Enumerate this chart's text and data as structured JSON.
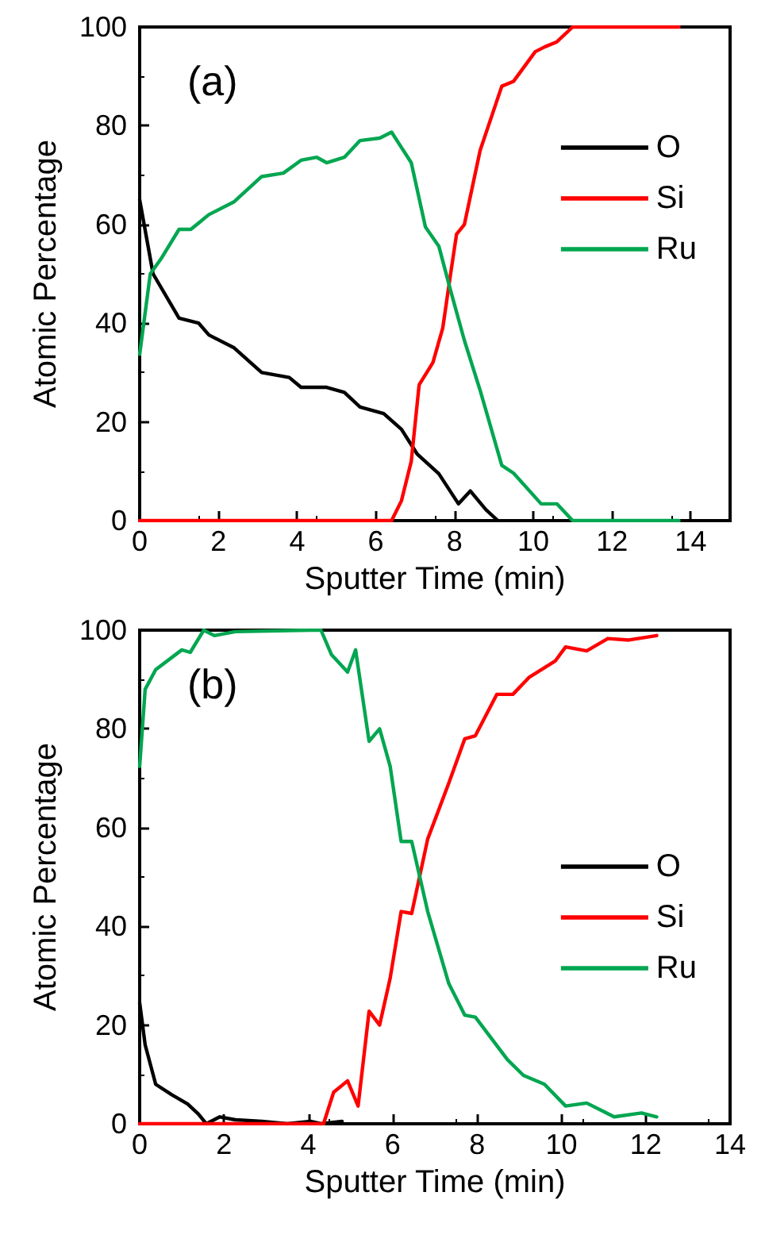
{
  "chart_data": [
    {
      "type": "line",
      "xlabel": "Sputter Time (min)",
      "ylabel": "Atomic Percentage",
      "annotations": [
        "(a)"
      ],
      "xlim": [
        0,
        15
      ],
      "xticks": [
        0,
        2,
        4,
        6,
        8,
        10,
        12,
        14
      ],
      "ylim": [
        0,
        100
      ],
      "yticks": [
        0,
        20,
        40,
        60,
        80,
        100
      ],
      "legend": "top right",
      "marker": "none",
      "line_style": "solid",
      "series": [
        {
          "name": "O",
          "color": "#000000",
          "x": [
            0,
            0.34,
            1.0,
            1.5,
            1.76,
            2.4,
            3.1,
            3.8,
            4.1,
            4.75,
            5.2,
            5.6,
            6.2,
            6.65,
            7.05,
            7.6,
            8.1,
            8.4,
            8.8,
            9.1
          ],
          "values": [
            65,
            50,
            41,
            40,
            37.6,
            35,
            30,
            29,
            27,
            27,
            26,
            23,
            21.7,
            18.5,
            13.5,
            9.5,
            3.4,
            6,
            2.2,
            0
          ]
        },
        {
          "name": "Si",
          "color": "#ff0000",
          "x": [
            0,
            6.4,
            6.65,
            6.9,
            7.1,
            7.45,
            7.7,
            7.9,
            8.05,
            8.25,
            8.65,
            9.2,
            9.5,
            10.05,
            10.3,
            10.6,
            11.0,
            13.7
          ],
          "values": [
            0,
            0,
            4,
            12,
            27.5,
            32,
            39,
            50,
            58,
            60,
            75,
            88,
            89,
            95,
            96,
            97,
            100,
            100
          ]
        },
        {
          "name": "Ru",
          "color": "#00a650",
          "x": [
            0,
            0.27,
            0.54,
            1.0,
            1.3,
            1.76,
            2.4,
            3.1,
            3.65,
            4.1,
            4.5,
            4.75,
            5.2,
            5.6,
            6.1,
            6.4,
            6.9,
            7.26,
            7.6,
            7.9,
            8.25,
            8.65,
            9.2,
            9.5,
            10.2,
            10.6,
            11.0,
            13.7
          ],
          "values": [
            33.7,
            50,
            53,
            59,
            59,
            62,
            64.6,
            69.7,
            70.4,
            73,
            73.6,
            72.5,
            73.6,
            77,
            77.5,
            78.7,
            72.5,
            59.5,
            55.6,
            46.6,
            36.5,
            26.4,
            11.2,
            9.6,
            3.4,
            3.4,
            0,
            0
          ]
        }
      ]
    },
    {
      "type": "line",
      "xlabel": "Sputter Time (min)",
      "ylabel": "Atomic Percentage",
      "annotations": [
        "(b)"
      ],
      "xlim": [
        0,
        14
      ],
      "xticks": [
        0,
        2,
        4,
        6,
        8,
        10,
        12,
        14
      ],
      "ylim": [
        0,
        100
      ],
      "yticks": [
        0,
        20,
        40,
        60,
        80,
        100
      ],
      "legend": "right",
      "marker": "none",
      "line_style": "solid",
      "series": [
        {
          "name": "O",
          "color": "#000000",
          "x": [
            0,
            0.13,
            0.38,
            0.76,
            1.14,
            1.39,
            1.58,
            1.9,
            2.27,
            2.9,
            3.5,
            4.05,
            4.3,
            4.8
          ],
          "values": [
            24.5,
            16,
            8,
            5.9,
            4,
            2,
            0,
            1.4,
            0.8,
            0.5,
            0,
            0.5,
            0,
            0.5
          ]
        },
        {
          "name": "Si",
          "color": "#ff0000",
          "x": [
            0,
            4.36,
            4.6,
            4.93,
            5.18,
            5.44,
            5.69,
            5.94,
            6.2,
            6.45,
            6.83,
            7.33,
            7.71,
            7.96,
            8.47,
            8.85,
            9.23,
            9.86,
            10.1,
            10.6,
            11.1,
            11.6,
            12.26
          ],
          "values": [
            0,
            0,
            6.4,
            8.7,
            3.6,
            22.8,
            20,
            29.5,
            43,
            42.6,
            57.7,
            69,
            78,
            78.6,
            87,
            87,
            90.4,
            93.8,
            96.6,
            95.8,
            98.3,
            98,
            98.9
          ]
        },
        {
          "name": "Ru",
          "color": "#00a650",
          "x": [
            0,
            0.13,
            0.38,
            1.0,
            1.2,
            1.52,
            1.77,
            2.27,
            4.05,
            4.3,
            4.55,
            4.93,
            5.12,
            5.44,
            5.69,
            5.94,
            6.2,
            6.45,
            6.83,
            7.33,
            7.71,
            7.96,
            8.72,
            9.1,
            9.6,
            10.1,
            10.6,
            11.25,
            11.9,
            12.26
          ],
          "values": [
            72.4,
            88,
            92,
            96,
            95.5,
            100,
            98.9,
            99.7,
            100,
            100,
            95,
            91.5,
            96,
            77.5,
            80,
            72.4,
            57.2,
            57.2,
            43,
            28.4,
            22,
            21.6,
            13,
            9.8,
            8,
            3.6,
            4.2,
            1.4,
            2.2,
            1.4
          ]
        }
      ]
    }
  ]
}
